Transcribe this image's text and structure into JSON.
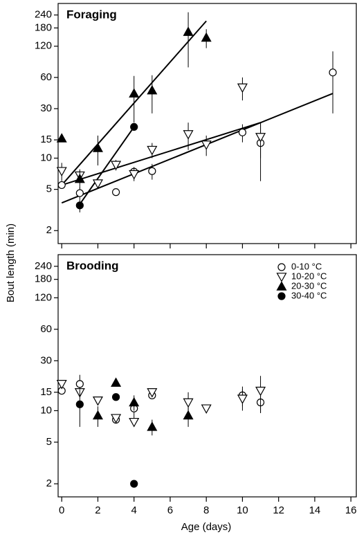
{
  "chart_data": [
    {
      "type": "scatter",
      "title": "Foraging",
      "ylabel": "Bout length (min)",
      "log_y": true,
      "xlim": [
        -0.2,
        16.3
      ],
      "ylim": [
        1.5,
        310
      ],
      "xticks": [
        0,
        2,
        4,
        6,
        8,
        10,
        12,
        14,
        16
      ],
      "yticks": [
        2,
        5,
        10,
        15,
        30,
        60,
        120,
        180,
        240
      ],
      "series": [
        {
          "name": "0-10 °C",
          "marker": "circle",
          "filled": false,
          "color": "#000000",
          "x": [
            0,
            1,
            3,
            4,
            5,
            10,
            11,
            15
          ],
          "values": [
            5.5,
            4.6,
            4.7,
            7.4,
            7.5,
            17.7,
            14,
            67
          ],
          "yerr": [
            null,
            0.6,
            null,
            0.8,
            1.3,
            3.5,
            8,
            40
          ]
        },
        {
          "name": "10-20 °C",
          "marker": "triangle-down",
          "filled": false,
          "color": "#000000",
          "x": [
            0,
            1,
            2,
            3,
            4,
            5,
            7,
            8,
            10,
            11
          ],
          "values": [
            7.5,
            6.8,
            5.7,
            8.6,
            7.0,
            12,
            17,
            13.5,
            48,
            16
          ],
          "yerr": [
            1.5,
            1,
            null,
            1,
            1,
            2,
            5,
            3,
            12,
            6
          ]
        },
        {
          "name": "20-30 °C",
          "marker": "triangle-up",
          "filled": true,
          "color": "#000000",
          "x": [
            0,
            1,
            2,
            4,
            5,
            7,
            8
          ],
          "values": [
            15.5,
            6.3,
            12.5,
            42,
            45,
            165,
            145
          ],
          "yerr": [
            null,
            1.2,
            4,
            20,
            18,
            90,
            30
          ]
        },
        {
          "name": "30-40 °C",
          "marker": "circle",
          "filled": true,
          "color": "#000000",
          "x": [
            1,
            4
          ],
          "values": [
            3.5,
            20
          ],
          "yerr": [
            0.5,
            null
          ]
        }
      ],
      "fits": [
        {
          "x": [
            0,
            8
          ],
          "y": [
            5.5,
            210
          ]
        },
        {
          "x": [
            0,
            11
          ],
          "y": [
            5.5,
            22
          ]
        },
        {
          "x": [
            0,
            15
          ],
          "y": [
            3.7,
            42
          ]
        },
        {
          "x": [
            1,
            4
          ],
          "y": [
            3.6,
            20
          ]
        }
      ]
    },
    {
      "type": "scatter",
      "title": "Brooding",
      "xlabel": "Age (days)",
      "log_y": true,
      "xlim": [
        -0.2,
        16.3
      ],
      "ylim": [
        1.5,
        310
      ],
      "xticks": [
        0,
        2,
        4,
        6,
        8,
        10,
        12,
        14,
        16
      ],
      "yticks": [
        2,
        5,
        10,
        15,
        30,
        60,
        120,
        180,
        240
      ],
      "legend": "upper right",
      "series": [
        {
          "name": "0-10 °C",
          "marker": "circle",
          "filled": false,
          "color": "#000000",
          "x": [
            0,
            1,
            3,
            4,
            5,
            10,
            11
          ],
          "values": [
            15.5,
            18,
            8.2,
            10.5,
            14,
            14,
            12
          ],
          "yerr": [
            null,
            4,
            null,
            2,
            null,
            3,
            2.5
          ]
        },
        {
          "name": "10-20 °C",
          "marker": "triangle-down",
          "filled": false,
          "color": "#000000",
          "x": [
            0,
            1,
            2,
            3,
            4,
            5,
            7,
            8,
            10,
            11
          ],
          "values": [
            18,
            15,
            12.5,
            8.5,
            7.8,
            15,
            12,
            10.5,
            13,
            15.5
          ],
          "yerr": [
            null,
            null,
            null,
            null,
            null,
            null,
            3,
            null,
            3,
            6
          ]
        },
        {
          "name": "20-30 °C",
          "marker": "triangle-up",
          "filled": true,
          "color": "#000000",
          "x": [
            2,
            3,
            4,
            5,
            7
          ],
          "values": [
            9,
            18.5,
            12,
            7,
            9
          ],
          "yerr": [
            2,
            null,
            2,
            1.2,
            2
          ]
        },
        {
          "name": "30-40 °C",
          "marker": "circle",
          "filled": true,
          "color": "#000000",
          "x": [
            1,
            3,
            4
          ],
          "values": [
            11.5,
            13.5,
            2
          ],
          "yerr": [
            4.5,
            null,
            null
          ]
        }
      ]
    }
  ]
}
